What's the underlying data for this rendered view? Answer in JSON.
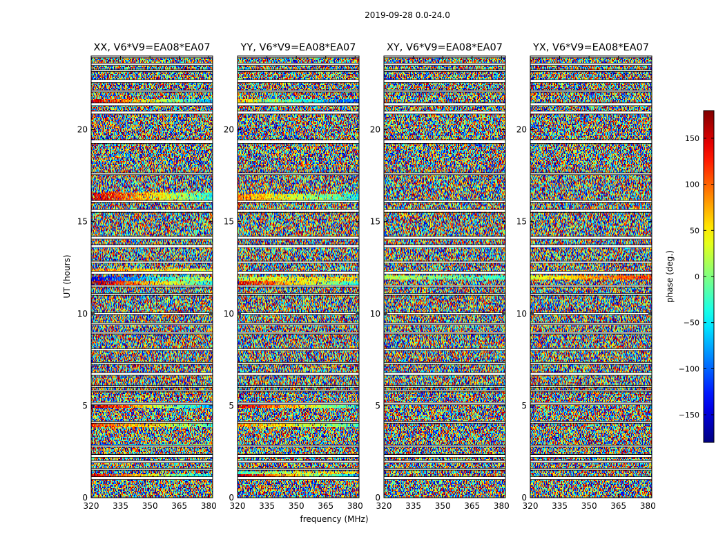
{
  "chart_data": {
    "type": "heatmap",
    "title": "2019-09-28 0.0-24.0",
    "xlabel": "frequency (MHz)",
    "ylabel": "UT (hours)",
    "xlim": [
      320,
      382
    ],
    "ylim": [
      0,
      24
    ],
    "x_ticks": [
      320,
      335,
      350,
      365,
      380
    ],
    "y_ticks": [
      0,
      5,
      10,
      15,
      20
    ],
    "colormap": "jet",
    "colorbar": {
      "label": "phase (deg.)",
      "range": [
        -180,
        180
      ],
      "ticks": [
        150,
        100,
        50,
        0,
        -50,
        -100,
        -150
      ],
      "tick_labels": [
        "150",
        "100",
        "50",
        "0",
        "−50",
        "−100",
        "−150"
      ]
    },
    "blank_time_gaps_hours": [
      [
        1.0,
        1.15
      ],
      [
        1.5,
        1.6
      ],
      [
        1.9,
        2.0
      ],
      [
        2.2,
        2.35
      ],
      [
        2.75,
        2.85
      ],
      [
        4.05,
        4.15
      ],
      [
        5.05,
        5.15
      ],
      [
        5.75,
        5.85
      ],
      [
        6.0,
        6.1
      ],
      [
        6.65,
        6.8
      ],
      [
        7.25,
        7.35
      ],
      [
        8.0,
        8.1
      ],
      [
        8.9,
        9.0
      ],
      [
        9.4,
        9.5
      ],
      [
        9.95,
        10.05
      ],
      [
        11.0,
        11.1
      ],
      [
        11.45,
        11.55
      ],
      [
        12.15,
        12.3
      ],
      [
        12.75,
        12.85
      ],
      [
        13.6,
        13.75
      ],
      [
        14.05,
        14.2
      ],
      [
        15.5,
        15.65
      ],
      [
        16.05,
        16.15
      ],
      [
        17.55,
        17.65
      ],
      [
        19.25,
        19.45
      ],
      [
        20.85,
        21.0
      ],
      [
        21.3,
        21.45
      ],
      [
        22.05,
        22.15
      ],
      [
        22.55,
        22.7
      ],
      [
        23.15,
        23.25
      ],
      [
        23.5,
        23.6
      ],
      [
        23.9,
        24.0
      ]
    ],
    "panels": [
      {
        "title": "XX, V6*V9=EA08*EA07",
        "noise_level": 0.92,
        "coherent_bands": [
          {
            "t": [
              1.15,
              1.3
            ],
            "phase_start": 150,
            "phase_end": -60,
            "peak": 0.35
          },
          {
            "t": [
              2.75,
              2.9
            ],
            "phase_start": -120,
            "phase_end": 20,
            "peak": 0.4
          },
          {
            "t": [
              3.85,
              4.05
            ],
            "phase_start": 120,
            "phase_end": -20,
            "peak": 0.4
          },
          {
            "t": [
              4.85,
              5.05
            ],
            "phase_start": 170,
            "phase_end": -80,
            "peak": 0.5
          },
          {
            "t": [
              11.55,
              11.8
            ],
            "phase_start": 170,
            "phase_end": -40,
            "peak": 0.5
          },
          {
            "t": [
              11.8,
              12.0
            ],
            "phase_start": -150,
            "phase_end": 40,
            "peak": 0.45
          },
          {
            "t": [
              12.3,
              12.45
            ],
            "phase_start": 90,
            "phase_end": 30,
            "peak": 0.4
          },
          {
            "t": [
              16.15,
              16.6
            ],
            "phase_start": 160,
            "phase_end": -40,
            "peak": 0.3
          },
          {
            "t": [
              21.45,
              21.65
            ],
            "phase_start": 150,
            "phase_end": -70,
            "peak": 0.4
          }
        ]
      },
      {
        "title": "YY, V6*V9=EA08*EA07",
        "noise_level": 0.92,
        "coherent_bands": [
          {
            "t": [
              1.15,
              1.3
            ],
            "phase_start": 170,
            "phase_end": -70,
            "peak": 0.3
          },
          {
            "t": [
              1.3,
              1.45
            ],
            "phase_start": -20,
            "phase_end": 60,
            "peak": 0.4
          },
          {
            "t": [
              3.85,
              4.05
            ],
            "phase_start": 90,
            "phase_end": -20,
            "peak": 0.4
          },
          {
            "t": [
              4.85,
              5.05
            ],
            "phase_start": 150,
            "phase_end": -40,
            "peak": 0.5
          },
          {
            "t": [
              11.55,
              11.8
            ],
            "phase_start": 150,
            "phase_end": -40,
            "peak": 0.5
          },
          {
            "t": [
              11.8,
              12.0
            ],
            "phase_start": 30,
            "phase_end": 60,
            "peak": 0.45
          },
          {
            "t": [
              16.15,
              16.5
            ],
            "phase_start": 90,
            "phase_end": -40,
            "peak": 0.3
          },
          {
            "t": [
              21.45,
              21.65
            ],
            "phase_start": 60,
            "phase_end": -110,
            "peak": 0.5
          }
        ]
      },
      {
        "title": "XY, V6*V9=EA08*EA07",
        "noise_level": 1.0,
        "coherent_bands": [
          {
            "t": [
              11.85,
              12.05
            ],
            "phase_start": 20,
            "phase_end": -30,
            "peak": 0.8
          }
        ]
      },
      {
        "title": "YX, V6*V9=EA08*EA07",
        "noise_level": 1.0,
        "coherent_bands": [
          {
            "t": [
              11.85,
              12.05
            ],
            "phase_start": 30,
            "phase_end": 120,
            "peak": 0.85
          }
        ]
      }
    ]
  }
}
